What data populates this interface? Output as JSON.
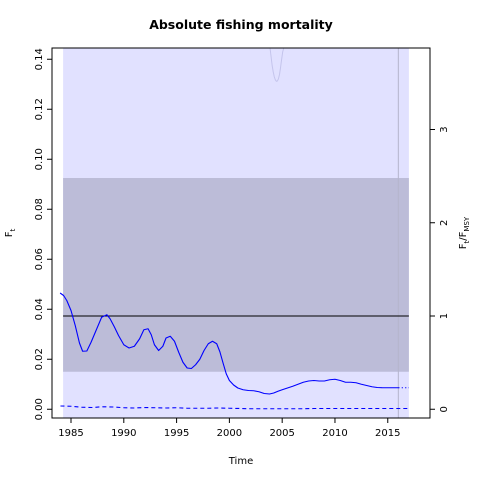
{
  "chart_data": {
    "type": "line",
    "title": "Absolute fishing mortality",
    "xlabel": "Time",
    "ylabel_left": "F",
    "ylabel_left_sub": "t",
    "ylabel_right_a": "F",
    "ylabel_right_a_sub": "t",
    "ylabel_right_b": "/F",
    "ylabel_right_b_sub": "MSY",
    "xlim": [
      1983.2,
      2019.0
    ],
    "ylim": [
      -0.0035,
      0.1445
    ],
    "x_ticks": [
      1985,
      1990,
      1995,
      2000,
      2005,
      2010,
      2015
    ],
    "y_ticks": [
      0.0,
      0.02,
      0.04,
      0.06,
      0.08,
      0.1,
      0.12,
      0.14
    ],
    "y_tick_labels": [
      "0.00",
      "0.02",
      "0.04",
      "0.06",
      "0.08",
      "0.10",
      "0.12",
      "0.14"
    ],
    "right_ticks": [
      0,
      1,
      2,
      3
    ],
    "right_tick_labels": [
      "0",
      "1",
      "2",
      "3"
    ],
    "fmsy": 0.0373,
    "grid": false,
    "colors": {
      "outer_band": "#e1e1ff",
      "inner_band": "#bcbcd8",
      "line": "#0000ff",
      "ci_edge": "#c4c4ec",
      "reference": "#000000",
      "vline": "#b4b4cc"
    },
    "outer_band": {
      "x": [
        1984.25,
        2017.0
      ],
      "y": [
        -0.0035,
        0.1445
      ]
    },
    "inner_band": {
      "x": [
        1984.25,
        2017.0
      ],
      "y": [
        0.015,
        0.0925
      ]
    },
    "vertical_line_x": 2016.0,
    "upper_ci": {
      "x": [
        2003.85,
        2003.95,
        2004.05,
        2004.15,
        2004.25,
        2004.35,
        2004.45,
        2004.55,
        2004.65,
        2004.75,
        2004.85,
        2004.95,
        2005.05,
        2005.15
      ],
      "y": [
        0.1445,
        0.141,
        0.1375,
        0.135,
        0.133,
        0.1318,
        0.1312,
        0.1313,
        0.1322,
        0.134,
        0.1368,
        0.14,
        0.143,
        0.1445
      ]
    },
    "series": [
      {
        "values_x": [
          1984.0,
          1984.3,
          1984.6,
          1985.0,
          1985.4,
          1985.8,
          1986.1,
          1986.5,
          1986.9,
          1987.4,
          1987.9,
          1988.4,
          1988.7,
          1989.1,
          1989.5,
          1990.0,
          1990.5,
          1991.0,
          1991.5,
          1991.9,
          1992.3,
          1992.6,
          1992.9,
          1993.3,
          1993.7,
          1994.0,
          1994.4,
          1994.8,
          1995.2,
          1995.6,
          1996.0,
          1996.4,
          1996.8,
          1997.2,
          1997.6,
          1998.0,
          1998.4,
          1998.8,
          1999.1,
          1999.4,
          1999.7,
          2000.0,
          2000.4,
          2000.8,
          2001.3,
          2001.8,
          2002.3,
          2002.8,
          2003.3,
          2003.8,
          2004.2,
          2004.6,
          2005.0,
          2005.5,
          2006.0,
          2006.5,
          2007.0,
          2007.5,
          2008.0,
          2008.5,
          2009.0,
          2009.5,
          2010.0,
          2010.5,
          2011.0,
          2011.5,
          2012.0,
          2012.5,
          2013.0,
          2013.5,
          2014.0,
          2014.5,
          2015.0,
          2015.5,
          2016.0
        ],
        "values": [
          0.0464,
          0.0455,
          0.0435,
          0.0395,
          0.0335,
          0.0265,
          0.0232,
          0.0233,
          0.0268,
          0.0318,
          0.0368,
          0.0378,
          0.0362,
          0.033,
          0.0295,
          0.0258,
          0.0245,
          0.0252,
          0.0282,
          0.0318,
          0.0322,
          0.0298,
          0.0258,
          0.0235,
          0.0252,
          0.0285,
          0.0292,
          0.0272,
          0.0228,
          0.0188,
          0.0165,
          0.0163,
          0.0178,
          0.02,
          0.0235,
          0.0262,
          0.0272,
          0.0262,
          0.023,
          0.0185,
          0.0142,
          0.0115,
          0.0097,
          0.0085,
          0.0078,
          0.0075,
          0.0074,
          0.007,
          0.0063,
          0.0061,
          0.0065,
          0.0072,
          0.0078,
          0.0085,
          0.0092,
          0.01,
          0.0108,
          0.0113,
          0.0115,
          0.0113,
          0.0113,
          0.0118,
          0.012,
          0.0115,
          0.0108,
          0.0108,
          0.0106,
          0.01,
          0.0095,
          0.009,
          0.0087,
          0.0086,
          0.0086,
          0.0086,
          0.0086
        ]
      },
      {
        "values_x": [
          2016.0,
          2017.0
        ],
        "values": [
          0.0086,
          0.0086
        ],
        "style": "dotted"
      },
      {
        "values_x": [
          1984.0,
          1985.0,
          1986.0,
          1987.0,
          1988.0,
          1989.0,
          1990.0,
          1991.0,
          1992.0,
          1993.0,
          1994.0,
          1995.0,
          1996.0,
          1997.0,
          1998.0,
          1999.0,
          2000.0,
          2001.0,
          2002.0,
          2003.0,
          2004.0,
          2005.0,
          2006.0,
          2007.0,
          2008.0,
          2009.0,
          2010.0,
          2011.0,
          2012.0,
          2013.0,
          2014.0,
          2015.0,
          2016.0,
          2017.0
        ],
        "values": [
          0.0013,
          0.0012,
          0.0008,
          0.0007,
          0.001,
          0.0009,
          0.0006,
          0.0005,
          0.0007,
          0.0006,
          0.0005,
          0.0006,
          0.0004,
          0.0004,
          0.0004,
          0.0005,
          0.0004,
          0.0003,
          0.0002,
          0.0002,
          0.0002,
          0.0002,
          0.0002,
          0.0002,
          0.0003,
          0.0003,
          0.0003,
          0.0003,
          0.0003,
          0.0003,
          0.0003,
          0.0003,
          0.0003,
          0.0003
        ],
        "style": "dashed"
      }
    ]
  }
}
